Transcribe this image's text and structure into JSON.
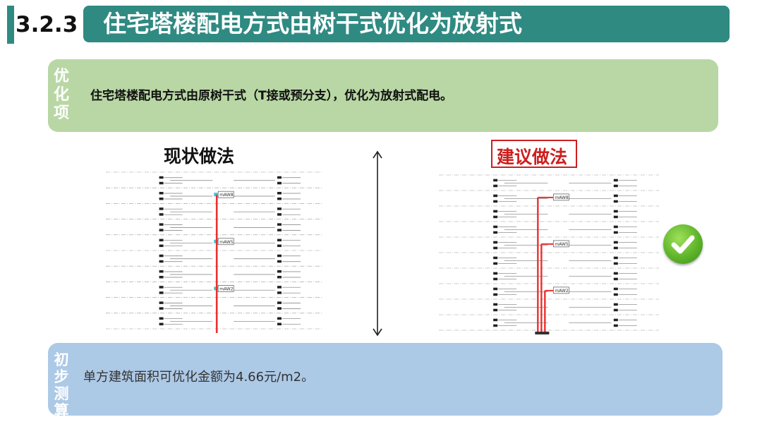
{
  "header": {
    "section_number": "3.2.3",
    "title": "住宅塔楼配电方式由树干式优化为放射式"
  },
  "optimization": {
    "label": "优化项",
    "text": "住宅塔楼配电方式由原树干式（T接或预分支），优化为放射式配电。"
  },
  "current": {
    "heading": "现状做法",
    "box_labels": [
      "mAW8",
      "mAW5",
      "mAW2"
    ]
  },
  "proposed": {
    "heading": "建议做法",
    "box_labels": [
      "mAW8",
      "mAW5",
      "mAW2"
    ]
  },
  "estimate": {
    "label": "初步测算",
    "text": "单方建筑面积可优化金额为4.66元/m2。"
  },
  "colors": {
    "teal": "#2f8a82",
    "green_box": "#b8d7a4",
    "blue_box": "#acc9e6",
    "red_line": "#e8312f",
    "highlight": "#cc1f1f"
  }
}
